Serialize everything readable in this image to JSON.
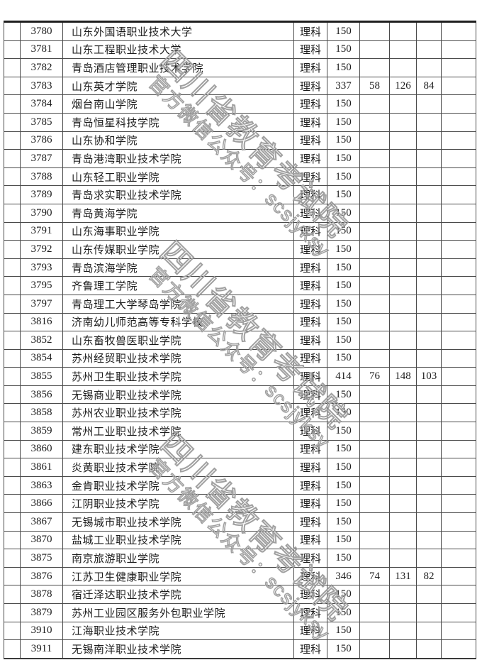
{
  "colors": {
    "watermark": "#a0a0a0",
    "grid_line": "#4a4a4a",
    "text": "#1c1c1c",
    "page_background": "#ffffff"
  },
  "watermark": {
    "line1": "四川省教育考试院",
    "line2": "官方微信公众号：scsjyksy"
  },
  "table": {
    "rows": [
      {
        "code": "3780",
        "name": "山东外国语职业技术大学",
        "category": "理科",
        "score": "150"
      },
      {
        "code": "3781",
        "name": "山东工程职业技术大学",
        "category": "理科",
        "score": "150"
      },
      {
        "code": "3782",
        "name": "青岛酒店管理职业技术学院",
        "category": "理科",
        "score": "150"
      },
      {
        "code": "3783",
        "name": "山东英才学院",
        "category": "理科",
        "score": "337",
        "s1": "58",
        "s2": "126",
        "s3": "84"
      },
      {
        "code": "3784",
        "name": "烟台南山学院",
        "category": "理科",
        "score": "150"
      },
      {
        "code": "3785",
        "name": "青岛恒星科技学院",
        "category": "理科",
        "score": "150"
      },
      {
        "code": "3786",
        "name": "山东协和学院",
        "category": "理科",
        "score": "150"
      },
      {
        "code": "3787",
        "name": "青岛港湾职业技术学院",
        "category": "理科",
        "score": "150"
      },
      {
        "code": "3788",
        "name": "山东轻工职业学院",
        "category": "理科",
        "score": "150"
      },
      {
        "code": "3789",
        "name": "青岛求实职业技术学院",
        "category": "理科",
        "score": "150"
      },
      {
        "code": "3790",
        "name": "青岛黄海学院",
        "category": "理科",
        "score": "150"
      },
      {
        "code": "3791",
        "name": "山东海事职业学院",
        "category": "理科",
        "score": "150"
      },
      {
        "code": "3792",
        "name": "山东传媒职业学院",
        "category": "理科",
        "score": "150"
      },
      {
        "code": "3793",
        "name": "青岛滨海学院",
        "category": "理科",
        "score": "150"
      },
      {
        "code": "3795",
        "name": "齐鲁理工学院",
        "category": "理科",
        "score": "150"
      },
      {
        "code": "3797",
        "name": "青岛理工大学琴岛学院",
        "category": "理科",
        "score": "150"
      },
      {
        "code": "3816",
        "name": "济南幼儿师范高等专科学校",
        "category": "理科",
        "score": "150"
      },
      {
        "code": "3852",
        "name": "山东畜牧兽医职业学院",
        "category": "理科",
        "score": "150"
      },
      {
        "code": "3854",
        "name": "苏州经贸职业技术学院",
        "category": "理科",
        "score": "150"
      },
      {
        "code": "3855",
        "name": "苏州卫生职业技术学院",
        "category": "理科",
        "score": "414",
        "s1": "76",
        "s2": "148",
        "s3": "103"
      },
      {
        "code": "3856",
        "name": "无锡商业职业技术学院",
        "category": "理科",
        "score": "150"
      },
      {
        "code": "3858",
        "name": "苏州农业职业技术学院",
        "category": "理科",
        "score": "150"
      },
      {
        "code": "3859",
        "name": "常州工业职业技术学院",
        "category": "理科",
        "score": "150"
      },
      {
        "code": "3860",
        "name": "建东职业技术学院",
        "category": "理科",
        "score": "150"
      },
      {
        "code": "3861",
        "name": "炎黄职业技术学院",
        "category": "理科",
        "score": "150"
      },
      {
        "code": "3863",
        "name": "金肯职业技术学院",
        "category": "理科",
        "score": "150"
      },
      {
        "code": "3866",
        "name": "江阴职业技术学院",
        "category": "理科",
        "score": "150"
      },
      {
        "code": "3867",
        "name": "无锡城市职业技术学院",
        "category": "理科",
        "score": "150"
      },
      {
        "code": "3870",
        "name": "盐城工业职业技术学院",
        "category": "理科",
        "score": "150"
      },
      {
        "code": "3875",
        "name": "南京旅游职业学院",
        "category": "理科",
        "score": "150"
      },
      {
        "code": "3876",
        "name": "江苏卫生健康职业学院",
        "category": "理科",
        "score": "346",
        "s1": "74",
        "s2": "131",
        "s3": "82"
      },
      {
        "code": "3878",
        "name": "宿迁泽达职业技术学院",
        "category": "理科",
        "score": "150"
      },
      {
        "code": "3879",
        "name": "苏州工业园区服务外包职业学院",
        "category": "理科",
        "score": "150"
      },
      {
        "code": "3910",
        "name": "江海职业技术学院",
        "category": "理科",
        "score": "150"
      },
      {
        "code": "3911",
        "name": "无锡南洋职业技术学院",
        "category": "理科",
        "score": "150"
      }
    ]
  }
}
